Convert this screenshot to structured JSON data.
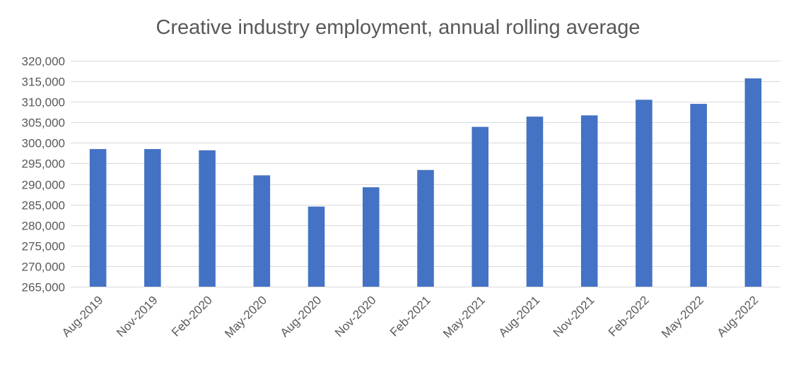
{
  "chart_data": {
    "type": "bar",
    "title": "Creative industry employment, annual rolling average",
    "xlabel": "",
    "ylabel": "",
    "categories": [
      "Aug-2019",
      "Nov-2019",
      "Feb-2020",
      "May-2020",
      "Aug-2020",
      "Nov-2020",
      "Feb-2021",
      "May-2021",
      "Aug-2021",
      "Nov-2021",
      "Feb-2022",
      "May-2022",
      "Aug-2022"
    ],
    "values": [
      298500,
      298500,
      298200,
      292100,
      284500,
      289200,
      293400,
      303900,
      306400,
      306700,
      310500,
      309500,
      315700
    ],
    "ylim": [
      265000,
      320000
    ],
    "yticks": [
      265000,
      270000,
      275000,
      280000,
      285000,
      290000,
      295000,
      300000,
      305000,
      310000,
      315000,
      320000
    ],
    "ytick_labels": [
      "265,000",
      "270,000",
      "275,000",
      "280,000",
      "285,000",
      "290,000",
      "295,000",
      "300,000",
      "305,000",
      "310,000",
      "315,000",
      "320,000"
    ],
    "grid": true,
    "legend": "none",
    "bar_color": "#4472c4",
    "grid_color": "#d9d9d9",
    "text_color": "#595959"
  }
}
